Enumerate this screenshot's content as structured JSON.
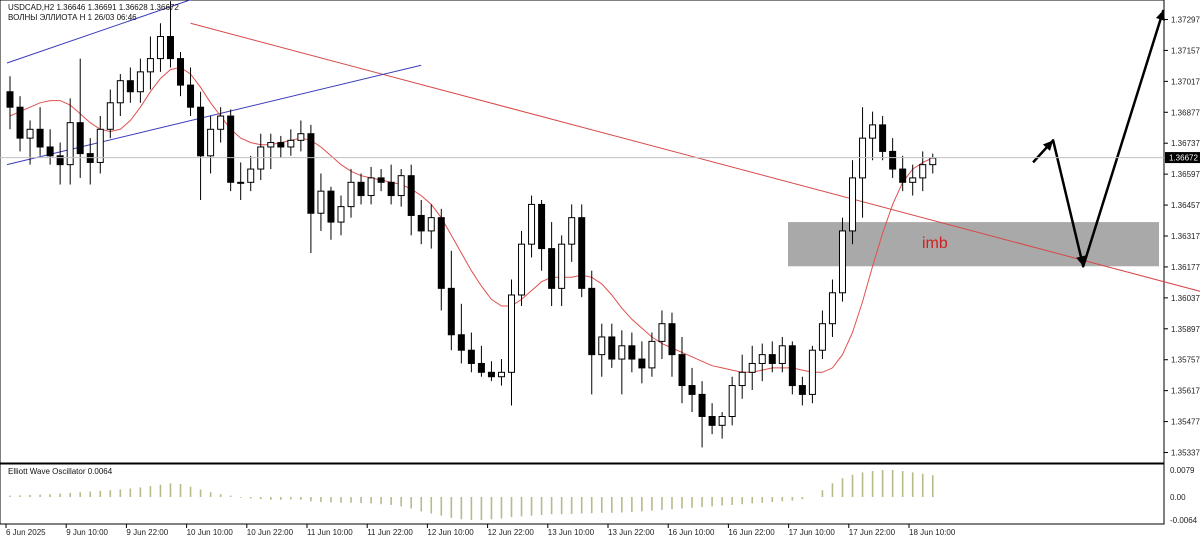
{
  "header": {
    "symbol_line": "USDCAD,H2  1.36646 1.36691 1.36628 1.36672",
    "indicator_line": "ВОЛНЫ ЭЛЛИОТА H 1 26/03 06:46"
  },
  "oscillator": {
    "label": "Elliott Wave Oscillator 0.0064",
    "scale": [
      "0.0079",
      "0.00",
      "-0.0064"
    ]
  },
  "price_axis": [
    "1.37297",
    "1.37157",
    "1.37017",
    "1.36877",
    "1.36737",
    "1.36597",
    "1.36457",
    "1.36317",
    "1.36177",
    "1.36037",
    "1.35897",
    "1.35757",
    "1.35617",
    "1.35477",
    "1.35337"
  ],
  "current_price": "1.36672",
  "time_axis": [
    "6 Jun 2025",
    "9 Jun 10:00",
    "9 Jun 22:00",
    "10 Jun 10:00",
    "10 Jun 22:00",
    "11 Jun 10:00",
    "11 Jun 22:00",
    "12 Jun 10:00",
    "12 Jun 22:00",
    "13 Jun 10:00",
    "13 Jun 22:00",
    "16 Jun 10:00",
    "16 Jun 22:00",
    "17 Jun 10:00",
    "17 Jun 22:00",
    "18 Jun 10:00"
  ],
  "zone_label": "imb",
  "colors": {
    "bull_candle": "#ffffff",
    "bear_candle": "#000000",
    "moving_average": "#e05050",
    "trendline_red": "#d84848",
    "channel_blue": "#3b3bbd",
    "zone_fill": "#a9a9a9",
    "oscillator_bar": "#b9b98a",
    "projection_arrow": "#000000"
  },
  "chart_data": {
    "type": "candlestick",
    "symbol": "USDCAD",
    "timeframe": "H2",
    "ylim": [
      1.3527,
      1.3745
    ],
    "candles": [
      {
        "o": 1.3697,
        "h": 1.3704,
        "l": 1.368,
        "c": 1.369
      },
      {
        "o": 1.369,
        "h": 1.3695,
        "l": 1.367,
        "c": 1.3676
      },
      {
        "o": 1.3676,
        "h": 1.3684,
        "l": 1.3664,
        "c": 1.368
      },
      {
        "o": 1.368,
        "h": 1.369,
        "l": 1.3668,
        "c": 1.3672
      },
      {
        "o": 1.3672,
        "h": 1.368,
        "l": 1.3664,
        "c": 1.3668
      },
      {
        "o": 1.3668,
        "h": 1.3674,
        "l": 1.3655,
        "c": 1.3664
      },
      {
        "o": 1.3664,
        "h": 1.3694,
        "l": 1.3655,
        "c": 1.3683
      },
      {
        "o": 1.3683,
        "h": 1.3712,
        "l": 1.3658,
        "c": 1.3669
      },
      {
        "o": 1.3669,
        "h": 1.3676,
        "l": 1.3655,
        "c": 1.3665
      },
      {
        "o": 1.3665,
        "h": 1.3686,
        "l": 1.366,
        "c": 1.368
      },
      {
        "o": 1.368,
        "h": 1.3698,
        "l": 1.3676,
        "c": 1.3692
      },
      {
        "o": 1.3692,
        "h": 1.3705,
        "l": 1.3686,
        "c": 1.3702
      },
      {
        "o": 1.3702,
        "h": 1.3708,
        "l": 1.3692,
        "c": 1.3697
      },
      {
        "o": 1.3697,
        "h": 1.3712,
        "l": 1.3692,
        "c": 1.3706
      },
      {
        "o": 1.3706,
        "h": 1.3722,
        "l": 1.3698,
        "c": 1.3712
      },
      {
        "o": 1.3712,
        "h": 1.3728,
        "l": 1.3706,
        "c": 1.3722
      },
      {
        "o": 1.3722,
        "h": 1.3738,
        "l": 1.3708,
        "c": 1.3712
      },
      {
        "o": 1.3712,
        "h": 1.3715,
        "l": 1.3695,
        "c": 1.37
      },
      {
        "o": 1.37,
        "h": 1.3708,
        "l": 1.3686,
        "c": 1.369
      },
      {
        "o": 1.369,
        "h": 1.3697,
        "l": 1.3648,
        "c": 1.3668
      },
      {
        "o": 1.3668,
        "h": 1.3686,
        "l": 1.366,
        "c": 1.368
      },
      {
        "o": 1.368,
        "h": 1.369,
        "l": 1.3674,
        "c": 1.3686
      },
      {
        "o": 1.3686,
        "h": 1.3689,
        "l": 1.3652,
        "c": 1.3656
      },
      {
        "o": 1.3656,
        "h": 1.3665,
        "l": 1.3648,
        "c": 1.3656
      },
      {
        "o": 1.3656,
        "h": 1.3668,
        "l": 1.3652,
        "c": 1.3662
      },
      {
        "o": 1.3662,
        "h": 1.3678,
        "l": 1.3657,
        "c": 1.3672
      },
      {
        "o": 1.3672,
        "h": 1.3678,
        "l": 1.3662,
        "c": 1.3674
      },
      {
        "o": 1.3674,
        "h": 1.3677,
        "l": 1.3667,
        "c": 1.3672
      },
      {
        "o": 1.3672,
        "h": 1.368,
        "l": 1.3668,
        "c": 1.3675
      },
      {
        "o": 1.3675,
        "h": 1.3684,
        "l": 1.367,
        "c": 1.3678
      },
      {
        "o": 1.3678,
        "h": 1.3682,
        "l": 1.3624,
        "c": 1.3642
      },
      {
        "o": 1.3642,
        "h": 1.366,
        "l": 1.3634,
        "c": 1.3652
      },
      {
        "o": 1.3652,
        "h": 1.3654,
        "l": 1.363,
        "c": 1.3638
      },
      {
        "o": 1.3638,
        "h": 1.365,
        "l": 1.3632,
        "c": 1.3645
      },
      {
        "o": 1.3645,
        "h": 1.3662,
        "l": 1.364,
        "c": 1.3656
      },
      {
        "o": 1.3656,
        "h": 1.366,
        "l": 1.3646,
        "c": 1.365
      },
      {
        "o": 1.365,
        "h": 1.3663,
        "l": 1.3646,
        "c": 1.3658
      },
      {
        "o": 1.3658,
        "h": 1.3662,
        "l": 1.3652,
        "c": 1.3656
      },
      {
        "o": 1.3656,
        "h": 1.3664,
        "l": 1.3646,
        "c": 1.365
      },
      {
        "o": 1.365,
        "h": 1.3662,
        "l": 1.3645,
        "c": 1.3659
      },
      {
        "o": 1.3659,
        "h": 1.3664,
        "l": 1.3632,
        "c": 1.3641
      },
      {
        "o": 1.3641,
        "h": 1.3648,
        "l": 1.3628,
        "c": 1.3634
      },
      {
        "o": 1.3634,
        "h": 1.3646,
        "l": 1.3626,
        "c": 1.364
      },
      {
        "o": 1.364,
        "h": 1.3644,
        "l": 1.3598,
        "c": 1.3608
      },
      {
        "o": 1.3608,
        "h": 1.3625,
        "l": 1.358,
        "c": 1.3587
      },
      {
        "o": 1.3587,
        "h": 1.3601,
        "l": 1.3574,
        "c": 1.358
      },
      {
        "o": 1.358,
        "h": 1.3588,
        "l": 1.357,
        "c": 1.3574
      },
      {
        "o": 1.3574,
        "h": 1.3582,
        "l": 1.3568,
        "c": 1.357
      },
      {
        "o": 1.357,
        "h": 1.3575,
        "l": 1.3566,
        "c": 1.3568
      },
      {
        "o": 1.3568,
        "h": 1.3576,
        "l": 1.3564,
        "c": 1.357
      },
      {
        "o": 1.357,
        "h": 1.3612,
        "l": 1.3555,
        "c": 1.3605
      },
      {
        "o": 1.3605,
        "h": 1.3634,
        "l": 1.36,
        "c": 1.3628
      },
      {
        "o": 1.3628,
        "h": 1.365,
        "l": 1.3622,
        "c": 1.3646
      },
      {
        "o": 1.3646,
        "h": 1.3648,
        "l": 1.3616,
        "c": 1.3626
      },
      {
        "o": 1.3626,
        "h": 1.3638,
        "l": 1.36,
        "c": 1.3608
      },
      {
        "o": 1.3608,
        "h": 1.3632,
        "l": 1.36,
        "c": 1.3628
      },
      {
        "o": 1.3628,
        "h": 1.3646,
        "l": 1.362,
        "c": 1.364
      },
      {
        "o": 1.364,
        "h": 1.3646,
        "l": 1.3604,
        "c": 1.3608
      },
      {
        "o": 1.3608,
        "h": 1.3616,
        "l": 1.356,
        "c": 1.3578
      },
      {
        "o": 1.3578,
        "h": 1.3592,
        "l": 1.3568,
        "c": 1.3586
      },
      {
        "o": 1.3586,
        "h": 1.3592,
        "l": 1.3572,
        "c": 1.3576
      },
      {
        "o": 1.3576,
        "h": 1.3589,
        "l": 1.356,
        "c": 1.3582
      },
      {
        "o": 1.3582,
        "h": 1.3588,
        "l": 1.357,
        "c": 1.3576
      },
      {
        "o": 1.3576,
        "h": 1.3584,
        "l": 1.3565,
        "c": 1.3572
      },
      {
        "o": 1.3572,
        "h": 1.3588,
        "l": 1.3568,
        "c": 1.3584
      },
      {
        "o": 1.3584,
        "h": 1.3598,
        "l": 1.3576,
        "c": 1.3592
      },
      {
        "o": 1.3592,
        "h": 1.3597,
        "l": 1.3568,
        "c": 1.3578
      },
      {
        "o": 1.3578,
        "h": 1.3586,
        "l": 1.3556,
        "c": 1.3564
      },
      {
        "o": 1.3564,
        "h": 1.3572,
        "l": 1.3552,
        "c": 1.356
      },
      {
        "o": 1.356,
        "h": 1.3566,
        "l": 1.3536,
        "c": 1.355
      },
      {
        "o": 1.355,
        "h": 1.3556,
        "l": 1.3542,
        "c": 1.3546
      },
      {
        "o": 1.3546,
        "h": 1.3552,
        "l": 1.354,
        "c": 1.355
      },
      {
        "o": 1.355,
        "h": 1.3568,
        "l": 1.3546,
        "c": 1.3564
      },
      {
        "o": 1.3564,
        "h": 1.3578,
        "l": 1.3558,
        "c": 1.357
      },
      {
        "o": 1.357,
        "h": 1.3582,
        "l": 1.3562,
        "c": 1.3574
      },
      {
        "o": 1.3574,
        "h": 1.3583,
        "l": 1.3566,
        "c": 1.3578
      },
      {
        "o": 1.3578,
        "h": 1.3584,
        "l": 1.357,
        "c": 1.3574
      },
      {
        "o": 1.3574,
        "h": 1.3586,
        "l": 1.357,
        "c": 1.3582
      },
      {
        "o": 1.3582,
        "h": 1.3584,
        "l": 1.356,
        "c": 1.3564
      },
      {
        "o": 1.3564,
        "h": 1.3568,
        "l": 1.3555,
        "c": 1.356
      },
      {
        "o": 1.356,
        "h": 1.3582,
        "l": 1.3556,
        "c": 1.358
      },
      {
        "o": 1.358,
        "h": 1.3598,
        "l": 1.3576,
        "c": 1.3592
      },
      {
        "o": 1.3592,
        "h": 1.3612,
        "l": 1.3586,
        "c": 1.3606
      },
      {
        "o": 1.3606,
        "h": 1.364,
        "l": 1.3602,
        "c": 1.3634
      },
      {
        "o": 1.3634,
        "h": 1.3666,
        "l": 1.3628,
        "c": 1.3658
      },
      {
        "o": 1.3658,
        "h": 1.369,
        "l": 1.364,
        "c": 1.3676
      },
      {
        "o": 1.3676,
        "h": 1.3688,
        "l": 1.3666,
        "c": 1.3682
      },
      {
        "o": 1.3682,
        "h": 1.3686,
        "l": 1.3666,
        "c": 1.367
      },
      {
        "o": 1.367,
        "h": 1.3676,
        "l": 1.3658,
        "c": 1.3662
      },
      {
        "o": 1.3662,
        "h": 1.3668,
        "l": 1.3652,
        "c": 1.3656
      },
      {
        "o": 1.3656,
        "h": 1.3664,
        "l": 1.365,
        "c": 1.3658
      },
      {
        "o": 1.3658,
        "h": 1.367,
        "l": 1.3652,
        "c": 1.3664
      },
      {
        "o": 1.3664,
        "h": 1.3669,
        "l": 1.366,
        "c": 1.3667
      }
    ],
    "moving_average": [
      1.3686,
      1.3688,
      1.369,
      1.3692,
      1.3693,
      1.3693,
      1.3691,
      1.3687,
      1.3683,
      1.368,
      1.3679,
      1.368,
      1.3684,
      1.369,
      1.3697,
      1.3703,
      1.3707,
      1.3708,
      1.3705,
      1.3699,
      1.3692,
      1.3686,
      1.368,
      1.3676,
      1.3674,
      1.3673,
      1.3673,
      1.3674,
      1.3675,
      1.3676,
      1.3675,
      1.3672,
      1.3668,
      1.3664,
      1.3661,
      1.3659,
      1.3658,
      1.3657,
      1.3656,
      1.3655,
      1.3653,
      1.365,
      1.3646,
      1.364,
      1.3632,
      1.3624,
      1.3616,
      1.3609,
      1.3603,
      1.36,
      1.36,
      1.3603,
      1.3607,
      1.3611,
      1.3613,
      1.3613,
      1.3613,
      1.3614,
      1.3613,
      1.361,
      1.3605,
      1.3599,
      1.3594,
      1.359,
      1.3586,
      1.3583,
      1.3581,
      1.3579,
      1.3577,
      1.3575,
      1.3573,
      1.3572,
      1.3571,
      1.357,
      1.357,
      1.3571,
      1.3572,
      1.3572,
      1.3572,
      1.3571,
      1.357,
      1.357,
      1.3572,
      1.3578,
      1.3588,
      1.3602,
      1.3618,
      1.3633,
      1.3646,
      1.3656,
      1.3662,
      1.3665,
      1.3667
    ],
    "oscillator_values": [
      0.0004,
      0.0005,
      0.0006,
      0.0007,
      0.0008,
      0.001,
      0.0012,
      0.0014,
      0.0016,
      0.0018,
      0.002,
      0.0022,
      0.0025,
      0.0028,
      0.0032,
      0.0036,
      0.004,
      0.0038,
      0.003,
      0.0022,
      0.0014,
      0.0008,
      0.0004,
      -0.0002,
      -0.0004,
      -0.0006,
      -0.0008,
      -0.0008,
      -0.0007,
      -0.0008,
      -0.0012,
      -0.0014,
      -0.0015,
      -0.0016,
      -0.0016,
      -0.0017,
      -0.0018,
      -0.002,
      -0.0022,
      -0.0026,
      -0.0032,
      -0.004,
      -0.0046,
      -0.0052,
      -0.0058,
      -0.0062,
      -0.0064,
      -0.0064,
      -0.0062,
      -0.006,
      -0.0056,
      -0.0054,
      -0.0052,
      -0.005,
      -0.0048,
      -0.0048,
      -0.0047,
      -0.0046,
      -0.0045,
      -0.0044,
      -0.0044,
      -0.0043,
      -0.0042,
      -0.004,
      -0.0038,
      -0.0036,
      -0.0034,
      -0.0032,
      -0.003,
      -0.0028,
      -0.0026,
      -0.0024,
      -0.0022,
      -0.002,
      -0.0018,
      -0.0016,
      -0.0014,
      -0.0012,
      -0.001,
      -0.0006,
      0.0,
      0.002,
      0.004,
      0.0055,
      0.0065,
      0.0072,
      0.0076,
      0.0079,
      0.0079,
      0.0076,
      0.0072,
      0.0068,
      0.0064
    ],
    "oscillator_ylim": [
      -0.0064,
      0.0079
    ],
    "imbalance_zone": {
      "low": 1.3618,
      "high": 1.3638
    },
    "trendline_red": [
      {
        "candle": 18,
        "price": 1.3728
      },
      {
        "candle": 125,
        "price": 1.3599
      }
    ],
    "channel_blue": [
      [
        {
          "candle": 0,
          "price": 1.371
        },
        {
          "candle": 24,
          "price": 1.3748
        }
      ],
      [
        {
          "candle": 0,
          "price": 1.3664
        },
        {
          "candle": 41,
          "price": 1.3709
        }
      ]
    ],
    "projection_arrow": [
      {
        "candle": 102,
        "price": 1.3665
      },
      {
        "candle": 104,
        "price": 1.3675
      },
      {
        "candle": 107,
        "price": 1.3618
      },
      {
        "candle": 115,
        "price": 1.3734
      }
    ]
  }
}
